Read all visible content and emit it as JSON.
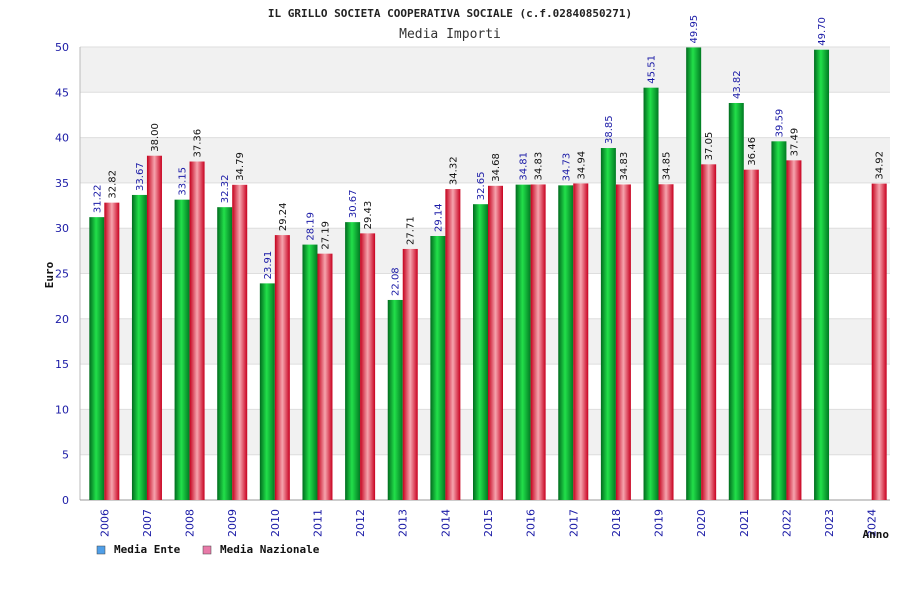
{
  "chart_data": {
    "type": "bar",
    "title": "IL GRILLO SOCIETA COOPERATIVA SOCIALE (c.f.02840850271)",
    "subtitle": "Media Importi",
    "xlabel": "Anno",
    "ylabel": "Euro",
    "ylim": [
      0,
      50
    ],
    "yticks": [
      0,
      5,
      10,
      15,
      20,
      25,
      30,
      35,
      40,
      45,
      50
    ],
    "categories": [
      "2006",
      "2007",
      "2008",
      "2009",
      "2010",
      "2011",
      "2012",
      "2013",
      "2014",
      "2015",
      "2016",
      "2017",
      "2018",
      "2019",
      "2020",
      "2021",
      "2022",
      "2023",
      "2024"
    ],
    "series": [
      {
        "name": "Media Ente",
        "color": "#00b050",
        "legend_color": "#4f9fe8",
        "values": [
          31.22,
          33.67,
          33.15,
          32.32,
          23.91,
          28.19,
          30.67,
          22.08,
          29.14,
          32.65,
          34.81,
          34.73,
          38.85,
          45.51,
          49.95,
          43.82,
          39.59,
          49.7,
          null
        ],
        "labels": [
          "31.22",
          "33.67",
          "33.15",
          "32.32",
          "23.91",
          "28.19",
          "30.67",
          "22.08",
          "29.14",
          "32.65",
          "34.81",
          "34.73",
          "38.85",
          "45.51",
          "49.95",
          "43.82",
          "39.59",
          "49.70",
          ""
        ]
      },
      {
        "name": "Media Nazionale",
        "color": "#e8283a",
        "legend_color": "#e87aa8",
        "values": [
          32.82,
          38.0,
          37.36,
          34.79,
          29.24,
          27.19,
          29.43,
          27.71,
          34.32,
          34.68,
          34.83,
          34.94,
          34.83,
          34.85,
          37.05,
          36.46,
          37.49,
          null,
          34.92
        ],
        "labels": [
          "32.82",
          "38.00",
          "37.36",
          "34.79",
          "29.24",
          "27.19",
          "29.43",
          "27.71",
          "34.32",
          "34.68",
          "34.83",
          "34.94",
          "34.83",
          "34.85",
          "37.05",
          "36.46",
          "37.49",
          "",
          "34.92"
        ]
      }
    ],
    "grid": true,
    "legend_position": "bottom-left"
  }
}
